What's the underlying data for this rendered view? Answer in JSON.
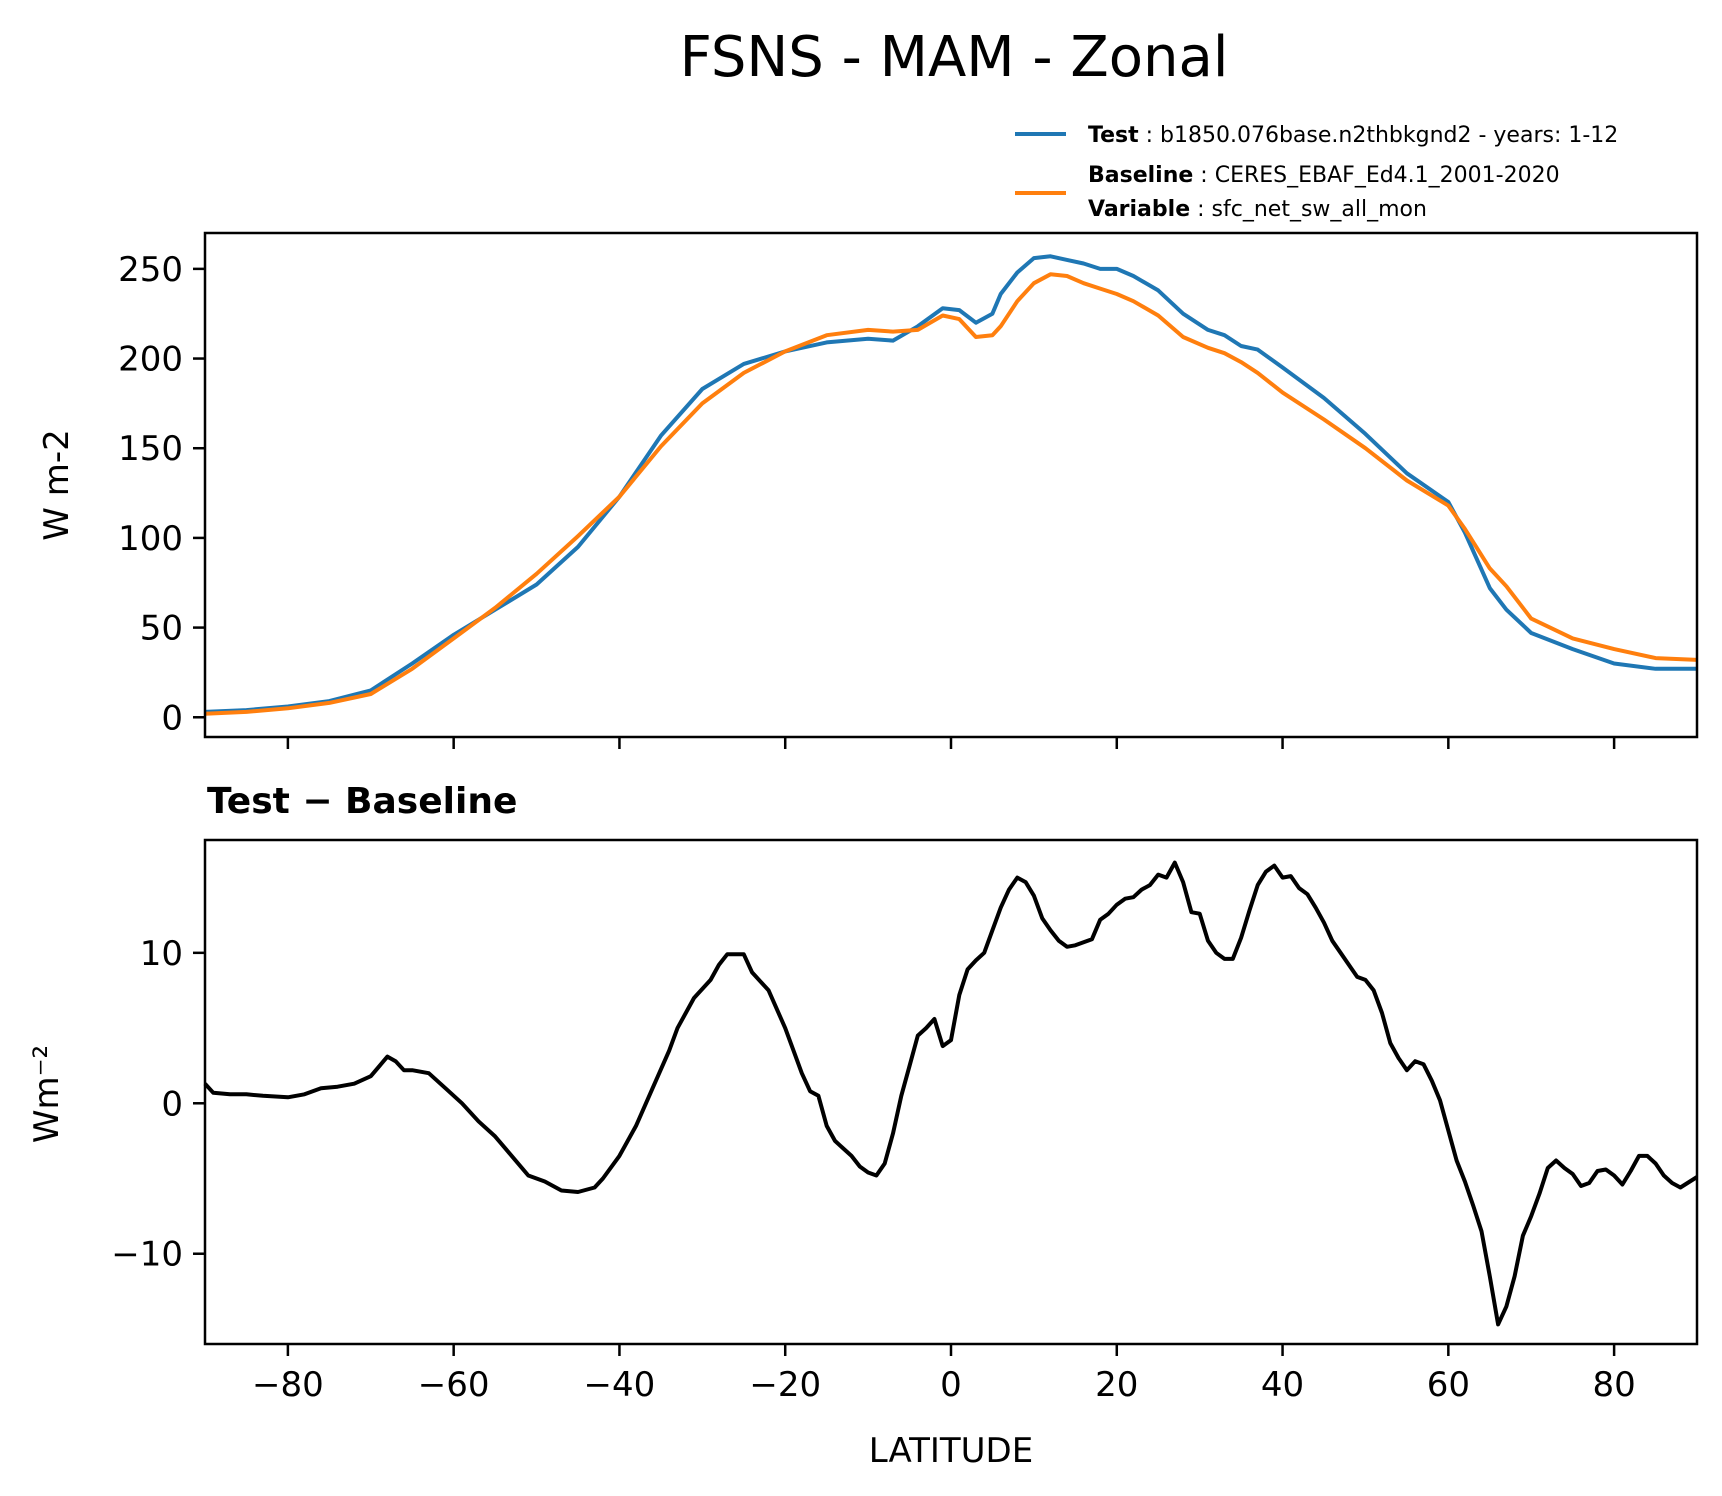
{
  "chart_data": {
    "type": "line",
    "title": "FSNS - MAM - Zonal",
    "xlabel": "LATITUDE",
    "xlim": [
      -90,
      90
    ],
    "xticks": [
      -80,
      -60,
      -40,
      -20,
      0,
      20,
      40,
      60,
      80
    ],
    "xtick_labels": [
      "−80",
      "−60",
      "−40",
      "−20",
      "0",
      "20",
      "40",
      "60",
      "80"
    ],
    "legend_position": "top-right",
    "colors": {
      "test": "#1f77b4",
      "baseline": "#ff7f0e",
      "diff": "#000000"
    },
    "legend": {
      "test_key": "Test",
      "test_value": "b1850.076base.n2thbkgnd2 - years: 1-12",
      "baseline_key": "Baseline",
      "baseline_value": "CERES_EBAF_Ed4.1_2001-2020",
      "variable_key": "Variable",
      "variable_value": "sfc_net_sw_all_mon",
      "sep": " : "
    },
    "top": {
      "ylabel": "W m-2",
      "ylim": [
        -11,
        270
      ],
      "yticks": [
        0,
        50,
        100,
        150,
        200,
        250
      ],
      "ytick_labels": [
        "0",
        "50",
        "100",
        "150",
        "200",
        "250"
      ],
      "x": [
        -90,
        -85,
        -80,
        -75,
        -70,
        -65,
        -60,
        -55,
        -50,
        -45,
        -40,
        -35,
        -30,
        -25,
        -20,
        -15,
        -10,
        -7,
        -4,
        -1,
        1,
        3,
        5,
        6,
        8,
        10,
        12,
        14,
        16,
        18,
        20,
        22,
        25,
        28,
        31,
        33,
        35,
        37,
        40,
        45,
        50,
        55,
        60,
        62,
        65,
        67,
        70,
        75,
        80,
        85,
        90
      ],
      "series": [
        {
          "name": "Test",
          "values": [
            3,
            4,
            6,
            9,
            15,
            30,
            46,
            60,
            74,
            95,
            123,
            157,
            183,
            197,
            204,
            209,
            211,
            210,
            218,
            228,
            227,
            220,
            225,
            236,
            248,
            256,
            257,
            255,
            253,
            250,
            250,
            246,
            238,
            225,
            216,
            213,
            207,
            205,
            195,
            178,
            158,
            136,
            120,
            103,
            72,
            60,
            47,
            38,
            30,
            27,
            27
          ]
        },
        {
          "name": "Baseline",
          "values": [
            2,
            3,
            5,
            8,
            13,
            27,
            44,
            61,
            80,
            101,
            123,
            151,
            175,
            192,
            204,
            213,
            216,
            215,
            216,
            224,
            222,
            212,
            213,
            218,
            232,
            242,
            247,
            246,
            242,
            239,
            236,
            232,
            224,
            212,
            206,
            203,
            198,
            192,
            181,
            166,
            150,
            132,
            118,
            105,
            83,
            73,
            55,
            44,
            38,
            33,
            32
          ]
        }
      ]
    },
    "bottom": {
      "title": "Test − Baseline",
      "ylabel": "Wm⁻²",
      "ylim": [
        -16,
        17.5
      ],
      "yticks": [
        -10,
        0,
        10
      ],
      "ytick_labels": [
        "−10",
        "0",
        "10"
      ],
      "series": [
        {
          "name": "Test - Baseline",
          "x": [
            -90,
            -89,
            -87,
            -85,
            -83,
            -80,
            -78,
            -76,
            -74,
            -72,
            -70,
            -68,
            -67,
            -66,
            -65,
            -63,
            -61,
            -59,
            -57,
            -55,
            -53,
            -51,
            -49,
            -47,
            -45,
            -43,
            -42,
            -40,
            -38,
            -36,
            -34,
            -33,
            -31,
            -29,
            -28,
            -27,
            -25,
            -24,
            -22,
            -20,
            -19,
            -18,
            -17,
            -16,
            -15,
            -14,
            -13,
            -12,
            -11,
            -10,
            -9,
            -8,
            -7,
            -6,
            -5,
            -4,
            -3,
            -2,
            -1,
            0,
            1,
            2,
            3,
            4,
            5,
            6,
            7,
            8,
            9,
            10,
            11,
            12,
            13,
            14,
            15,
            16,
            17,
            18,
            19,
            20,
            21,
            22,
            23,
            24,
            25,
            26,
            27,
            28,
            29,
            30,
            31,
            32,
            33,
            34,
            35,
            36,
            37,
            38,
            39,
            40,
            41,
            42,
            43,
            44,
            45,
            46,
            47,
            48,
            49,
            50,
            51,
            52,
            53,
            54,
            55,
            56,
            57,
            58,
            59,
            60,
            61,
            62,
            63,
            64,
            65,
            66,
            67,
            68,
            69,
            70,
            71,
            72,
            73,
            74,
            75,
            76,
            77,
            78,
            79,
            80,
            81,
            82,
            83,
            84,
            85,
            86,
            87,
            88,
            90
          ],
          "values": [
            1.3,
            0.7,
            0.6,
            0.6,
            0.5,
            0.4,
            0.6,
            1.0,
            1.1,
            1.3,
            1.8,
            3.1,
            2.8,
            2.2,
            2.2,
            2.0,
            1.0,
            0.0,
            -1.2,
            -2.2,
            -3.5,
            -4.8,
            -5.2,
            -5.8,
            -5.9,
            -5.6,
            -5.0,
            -3.5,
            -1.5,
            1.0,
            3.5,
            5.0,
            7.0,
            8.2,
            9.2,
            9.9,
            9.9,
            8.7,
            7.5,
            5.0,
            3.5,
            2.0,
            0.8,
            0.5,
            -1.5,
            -2.5,
            -3.0,
            -3.5,
            -4.2,
            -4.6,
            -4.8,
            -4.0,
            -2.0,
            0.5,
            2.5,
            4.5,
            5.0,
            5.6,
            3.8,
            4.2,
            7.2,
            8.9,
            9.5,
            10.0,
            11.5,
            13.0,
            14.2,
            15.0,
            14.7,
            13.8,
            12.3,
            11.5,
            10.8,
            10.4,
            10.5,
            10.7,
            10.9,
            12.2,
            12.6,
            13.2,
            13.6,
            13.7,
            14.2,
            14.5,
            15.2,
            15.0,
            16.0,
            14.7,
            12.7,
            12.6,
            10.8,
            10.0,
            9.6,
            9.6,
            11.0,
            12.8,
            14.5,
            15.4,
            15.8,
            15.0,
            15.1,
            14.3,
            13.9,
            13.0,
            12.0,
            10.8,
            10.0,
            9.2,
            8.4,
            8.2,
            7.5,
            6.0,
            4.0,
            3.0,
            2.2,
            2.8,
            2.6,
            1.5,
            0.2,
            -1.8,
            -3.8,
            -5.2,
            -6.8,
            -8.5,
            -11.5,
            -14.7,
            -13.5,
            -11.5,
            -8.8,
            -7.5,
            -6.0,
            -4.3,
            -3.8,
            -4.3,
            -4.7,
            -5.5,
            -5.3,
            -4.5,
            -4.4,
            -4.8,
            -5.4,
            -4.5,
            -3.5,
            -3.5,
            -4.0,
            -4.8,
            -5.3,
            -5.6,
            -4.9
          ]
        }
      ]
    }
  }
}
